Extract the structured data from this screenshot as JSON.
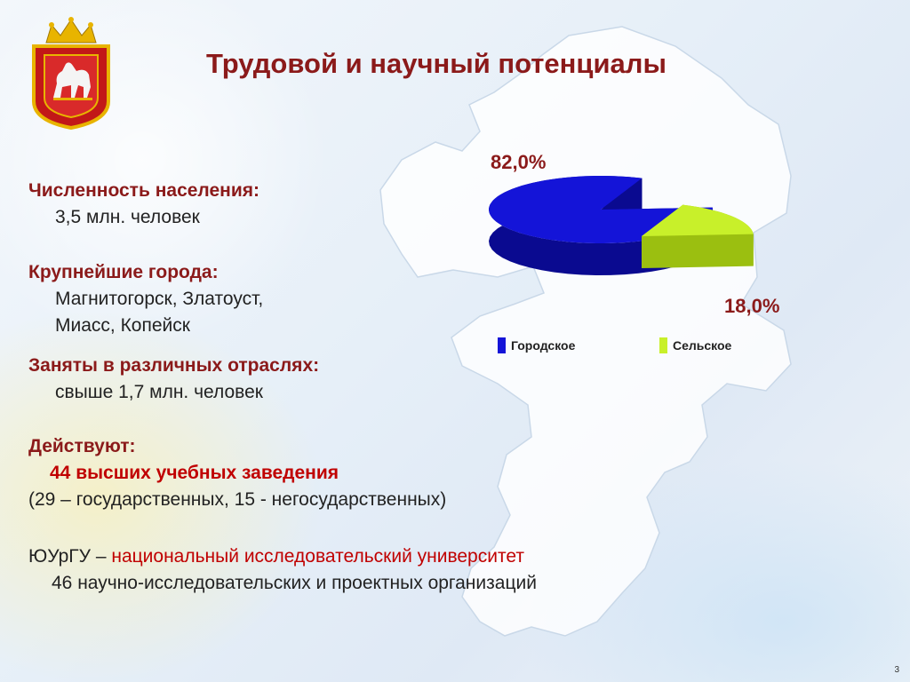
{
  "title": "Трудовой и научный потенциалы",
  "sections": {
    "population_heading": "Численность населения:",
    "population_value": "3,5 млн. человек",
    "cities_heading": "Крупнейшие города:",
    "cities_line1": "Магнитогорск, Златоуст,",
    "cities_line2": "Миасс, Копейск",
    "employed_heading": "Заняты в различных  отраслях:",
    "employed_value": "свыше 1,7 млн. человек",
    "operate_heading": "Действуют:",
    "universities": "44 высших учебных заведения",
    "universities_detail": "(29 – государственных, 15 - негосударственных)",
    "susu_name": "ЮУрГУ",
    "susu_dash": " – ",
    "susu_desc": "национальный исследовательский университет",
    "research_orgs": "46 научно-исследовательских и проектных организаций"
  },
  "chart_data": {
    "type": "pie",
    "categories": [
      "Городское",
      "Сельское"
    ],
    "values": [
      82.0,
      18.0
    ],
    "value_labels": [
      "82,0%",
      "18,0%"
    ],
    "colors": [
      "#1414d8",
      "#c8f02a"
    ],
    "legend_position": "bottom"
  },
  "page_number": "3"
}
